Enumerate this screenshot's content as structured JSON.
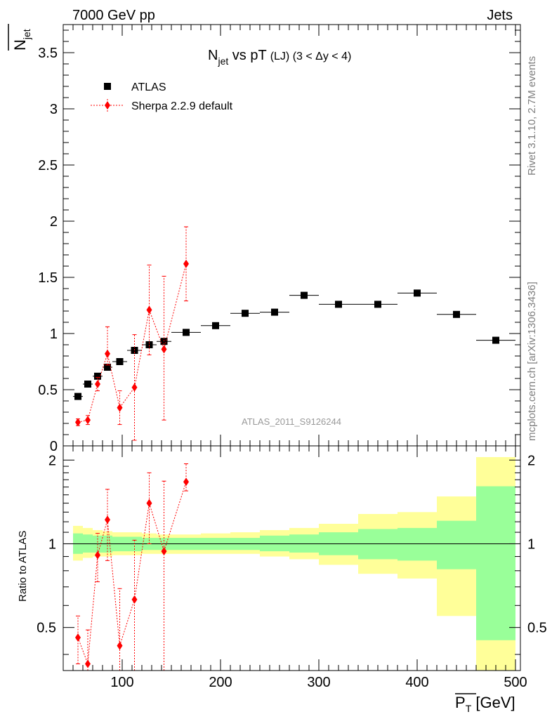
{
  "header": {
    "energy_label": "7000 GeV pp",
    "process_label": "Jets"
  },
  "side_labels": {
    "rivet": "Rivet 3.1.10,  2.7M events",
    "mcplots": "mcplots.cern.ch [arXiv:1306.3436]"
  },
  "watermark": "ATLAS_2011_S9126244",
  "colors": {
    "data": "#000000",
    "sherpa": "#ff0000",
    "band_inner": "#99ff99",
    "band_outer": "#ffff99",
    "side_text": "#7f7f7f"
  },
  "chart_data": [
    {
      "type": "scatter",
      "panel": "main",
      "title": {
        "prefix": "N",
        "prefix_sub": "jet",
        "mid": " vs pT",
        "suffix": "(LJ) (3 < Δy < 4)"
      },
      "ylabel": {
        "main": "N",
        "sub": "jet"
      },
      "xlim": [
        40,
        505
      ],
      "ylim": [
        0,
        3.75
      ],
      "y_ticks": [
        0,
        0.5,
        1,
        1.5,
        2,
        2.5,
        3,
        3.5
      ],
      "y_tick_labels": [
        "0",
        "0.5",
        "1",
        "1.5",
        "2",
        "2.5",
        "3",
        "3.5"
      ],
      "legend_position": "top-left",
      "series": [
        {
          "name": "ATLAS",
          "marker": "square",
          "x": [
            55,
            65,
            75,
            85,
            97.5,
            112.5,
            127.5,
            142.5,
            165,
            195,
            225,
            255,
            285,
            320,
            360,
            400,
            440,
            480
          ],
          "xerr": [
            5,
            5,
            5,
            5,
            7.5,
            7.5,
            7.5,
            7.5,
            15,
            15,
            15,
            15,
            15,
            20,
            20,
            20,
            20,
            20
          ],
          "y": [
            0.44,
            0.55,
            0.62,
            0.7,
            0.75,
            0.85,
            0.9,
            0.93,
            1.01,
            1.07,
            1.18,
            1.19,
            1.34,
            1.26,
            1.26,
            1.36,
            1.17,
            0.94
          ]
        },
        {
          "name": "Sherpa 2.2.9 default",
          "marker": "diamond",
          "x": [
            55,
            65,
            75,
            85,
            97.5,
            112.5,
            127.5,
            142.5,
            165
          ],
          "y": [
            0.21,
            0.23,
            0.55,
            0.82,
            0.34,
            0.52,
            1.21,
            0.86,
            1.62
          ],
          "yerr_low": [
            0.03,
            0.04,
            0.06,
            0.1,
            0.15,
            0.47,
            0.4,
            0.63,
            0.33
          ],
          "yerr_high": [
            0.03,
            0.04,
            0.06,
            0.24,
            0.15,
            0.47,
            0.4,
            0.65,
            0.33
          ]
        }
      ]
    },
    {
      "type": "scatter",
      "panel": "ratio",
      "ylabel": "Ratio to ATLAS",
      "xlabel": {
        "main": "P",
        "sub": "T",
        "unit": " [GeV]"
      },
      "xlim": [
        40,
        505
      ],
      "ylim": [
        0.35,
        2.25
      ],
      "x_ticks": [
        100,
        200,
        300,
        400,
        500
      ],
      "x_tick_labels": [
        "100",
        "200",
        "300",
        "400",
        "500"
      ],
      "y_ticks": [
        0.5,
        1,
        2
      ],
      "y_tick_labels": [
        "0.5",
        "1",
        "2"
      ],
      "reference_line": 1,
      "uncertainty_bands": {
        "x_edges": [
          50,
          60,
          70,
          80,
          90,
          105,
          120,
          135,
          150,
          180,
          210,
          240,
          270,
          300,
          340,
          380,
          420,
          460,
          500
        ],
        "inner_low": [
          0.92,
          0.93,
          0.93,
          0.93,
          0.94,
          0.94,
          0.95,
          0.95,
          0.95,
          0.95,
          0.95,
          0.94,
          0.93,
          0.91,
          0.88,
          0.87,
          0.81,
          0.45
        ],
        "inner_high": [
          1.09,
          1.08,
          1.07,
          1.07,
          1.06,
          1.06,
          1.05,
          1.05,
          1.05,
          1.05,
          1.05,
          1.07,
          1.08,
          1.1,
          1.13,
          1.14,
          1.21,
          1.61
        ],
        "outer_low": [
          0.87,
          0.89,
          0.9,
          0.9,
          0.91,
          0.91,
          0.92,
          0.92,
          0.92,
          0.92,
          0.92,
          0.9,
          0.88,
          0.84,
          0.78,
          0.75,
          0.55,
          0.35
        ],
        "outer_high": [
          1.16,
          1.14,
          1.12,
          1.11,
          1.1,
          1.1,
          1.09,
          1.08,
          1.08,
          1.09,
          1.1,
          1.12,
          1.14,
          1.18,
          1.28,
          1.3,
          1.48,
          2.05
        ]
      },
      "series": [
        {
          "name": "Sherpa 2.2.9 default",
          "marker": "diamond",
          "x": [
            55,
            65,
            75,
            85,
            97.5,
            112.5,
            127.5,
            142.5,
            165
          ],
          "y": [
            0.46,
            0.37,
            0.91,
            1.22,
            0.43,
            0.63,
            1.4,
            0.94,
            1.67
          ],
          "yerr_low": [
            0.09,
            0.08,
            0.18,
            0.35,
            0.08,
            0.4,
            0.4,
            0.6,
            0.12
          ],
          "yerr_high": [
            0.09,
            0.12,
            0.18,
            0.35,
            0.26,
            0.4,
            0.4,
            0.74,
            0.27
          ]
        }
      ]
    }
  ]
}
